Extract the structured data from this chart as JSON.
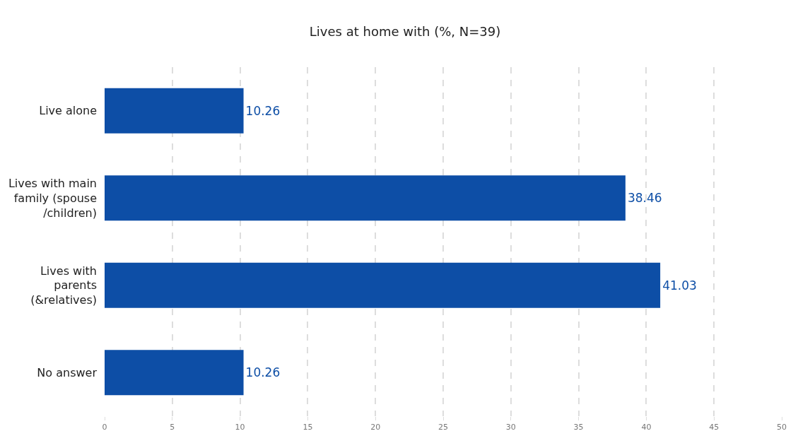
{
  "chart_data": {
    "type": "bar",
    "orientation": "horizontal",
    "title": "Lives at home with (%, N=39)",
    "categories": [
      "Live alone",
      "Lives with main\nfamily (spouse\n/children)",
      "Lives with\nparents\n(&relatives)",
      "No answer"
    ],
    "values": [
      10.26,
      38.46,
      41.03,
      10.26
    ],
    "color": "#0d4ea6",
    "data_labels": true,
    "xlim": [
      0,
      50
    ],
    "xticks": [
      0,
      5,
      10,
      15,
      20,
      25,
      30,
      35,
      40,
      45,
      50
    ],
    "grid": "x",
    "legend": false
  }
}
